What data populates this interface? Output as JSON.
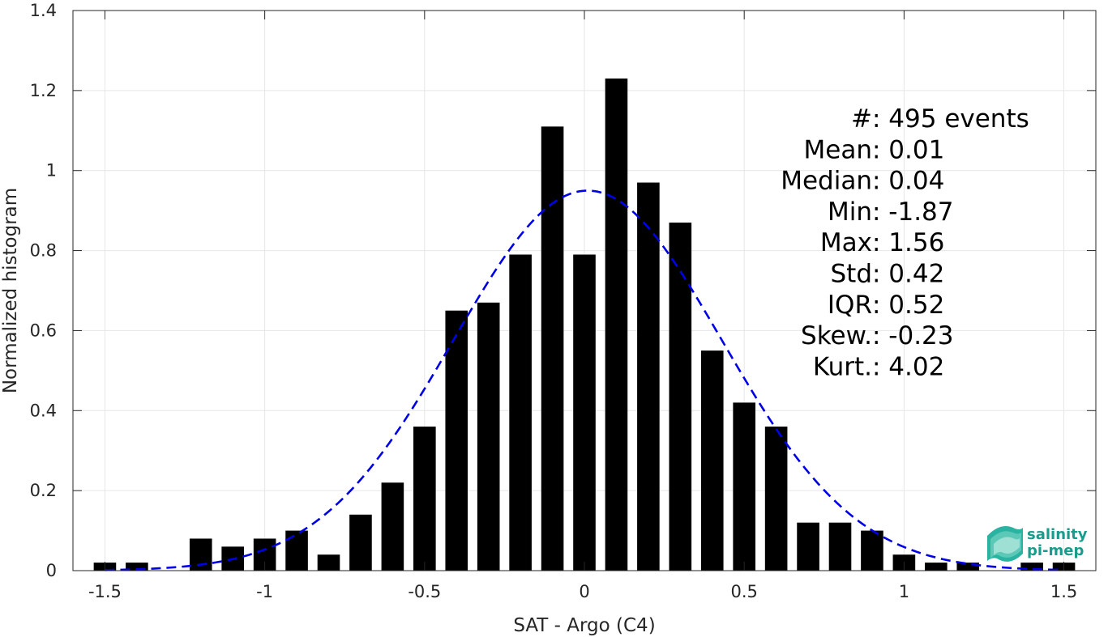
{
  "chart_data": {
    "type": "bar",
    "xlabel": "SAT - Argo (C4)",
    "ylabel": "Normalized histogram",
    "xlim": [
      -1.6,
      1.6
    ],
    "ylim": [
      0,
      1.4
    ],
    "xticks": [
      -1.5,
      -1,
      -0.5,
      0,
      0.5,
      1,
      1.5
    ],
    "xtick_labels": [
      "-1.5",
      "-1",
      "-0.5",
      "0",
      "0.5",
      "1",
      "1.5"
    ],
    "yticks": [
      0,
      0.2,
      0.4,
      0.6,
      0.8,
      1,
      1.2,
      1.4
    ],
    "ytick_labels": [
      "0",
      "0.2",
      "0.4",
      "0.6",
      "0.8",
      "1",
      "1.2",
      "1.4"
    ],
    "grid": true,
    "bar_color": "#000000",
    "bar_width": 0.07,
    "x": [
      -1.5,
      -1.4,
      -1.2,
      -1.1,
      -1.0,
      -0.9,
      -0.8,
      -0.7,
      -0.6,
      -0.5,
      -0.4,
      -0.3,
      -0.2,
      -0.1,
      0.0,
      0.1,
      0.2,
      0.3,
      0.4,
      0.5,
      0.6,
      0.7,
      0.8,
      0.9,
      1.0,
      1.1,
      1.2,
      1.4,
      1.5
    ],
    "values": [
      0.02,
      0.02,
      0.08,
      0.06,
      0.08,
      0.1,
      0.04,
      0.14,
      0.22,
      0.36,
      0.65,
      0.67,
      0.79,
      1.11,
      0.79,
      1.23,
      0.97,
      0.87,
      0.55,
      0.42,
      0.36,
      0.12,
      0.12,
      0.1,
      0.04,
      0.02,
      0.02,
      0.02,
      0.02
    ],
    "fit": {
      "type": "gaussian",
      "mean": 0.01,
      "std": 0.42,
      "x_range": [
        -1.5,
        1.5
      ],
      "color": "#0000e6",
      "style": "dashed"
    },
    "annotation": [
      {
        "label": "#  ",
        "value": ": 495 events"
      },
      {
        "label": "Mean ",
        "value": ": 0.01"
      },
      {
        "label": "Median ",
        "value": ": 0.04"
      },
      {
        "label": "Min ",
        "value": ": -1.87"
      },
      {
        "label": "Max ",
        "value": ": 1.56"
      },
      {
        "label": "Std ",
        "value": ": 0.42"
      },
      {
        "label": "IQR ",
        "value": ": 0.52"
      },
      {
        "label": "Skew. ",
        "value": ": -0.23"
      },
      {
        "label": "Kurt. ",
        "value": ": 4.02"
      }
    ]
  },
  "logo": {
    "line1": "salinity",
    "line2": "pi-mep",
    "color": "#1a9c8c"
  }
}
